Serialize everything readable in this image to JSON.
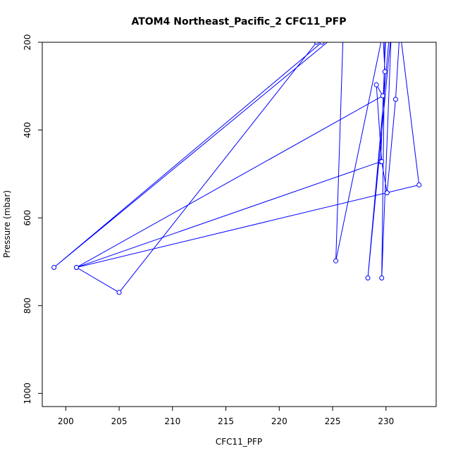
{
  "chart_data": {
    "type": "line",
    "title": "ATOM4 Northeast_Pacific_2 CFC11_PFP",
    "xlabel": "CFC11_PFP",
    "ylabel": "Pressure (mbar)",
    "xlim": [
      197.8,
      234.7
    ],
    "ylim": [
      1030,
      200
    ],
    "y_reversed": true,
    "x_ticks": [
      200,
      205,
      210,
      215,
      220,
      225,
      230
    ],
    "y_ticks": [
      200,
      400,
      600,
      800,
      1000
    ],
    "grid": false,
    "series_color": "#0000ff",
    "series": [
      {
        "x": [
          224.0,
          198.9,
          225.5,
          226.0,
          225.3,
          229.7,
          230.2,
          230.4,
          228.3,
          230.5,
          229.6,
          229.9,
          230.0,
          229.5,
          201.0,
          229.7,
          229.1,
          229.6,
          230.1,
          230.9,
          231.3,
          233.1,
          201.0,
          205.0,
          223.5,
          229.6,
          229.7,
          229.9
        ],
        "y": [
          200,
          713,
          180,
          170,
          698,
          180,
          170,
          160,
          737,
          175,
          737,
          180,
          170,
          472,
          713,
          322,
          297,
          472,
          543,
          330,
          170,
          525,
          713,
          770,
          200,
          180,
          175,
          267
        ]
      }
    ]
  }
}
